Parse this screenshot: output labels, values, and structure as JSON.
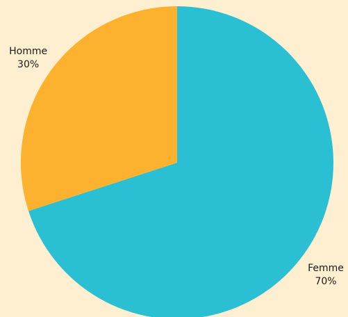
{
  "chart_data": {
    "type": "pie",
    "title": "",
    "slices": [
      {
        "label": "Femme",
        "value": 70,
        "percent_label": "70%",
        "color": "#2bbfd4"
      },
      {
        "label": "Homme",
        "value": 30,
        "percent_label": "30%",
        "color": "#fdb22f"
      }
    ],
    "start_angle_deg": 0,
    "direction": "clockwise",
    "legend": "none"
  },
  "colors": {
    "background": "#fdefcf",
    "label_text": "#1a1a1a"
  }
}
